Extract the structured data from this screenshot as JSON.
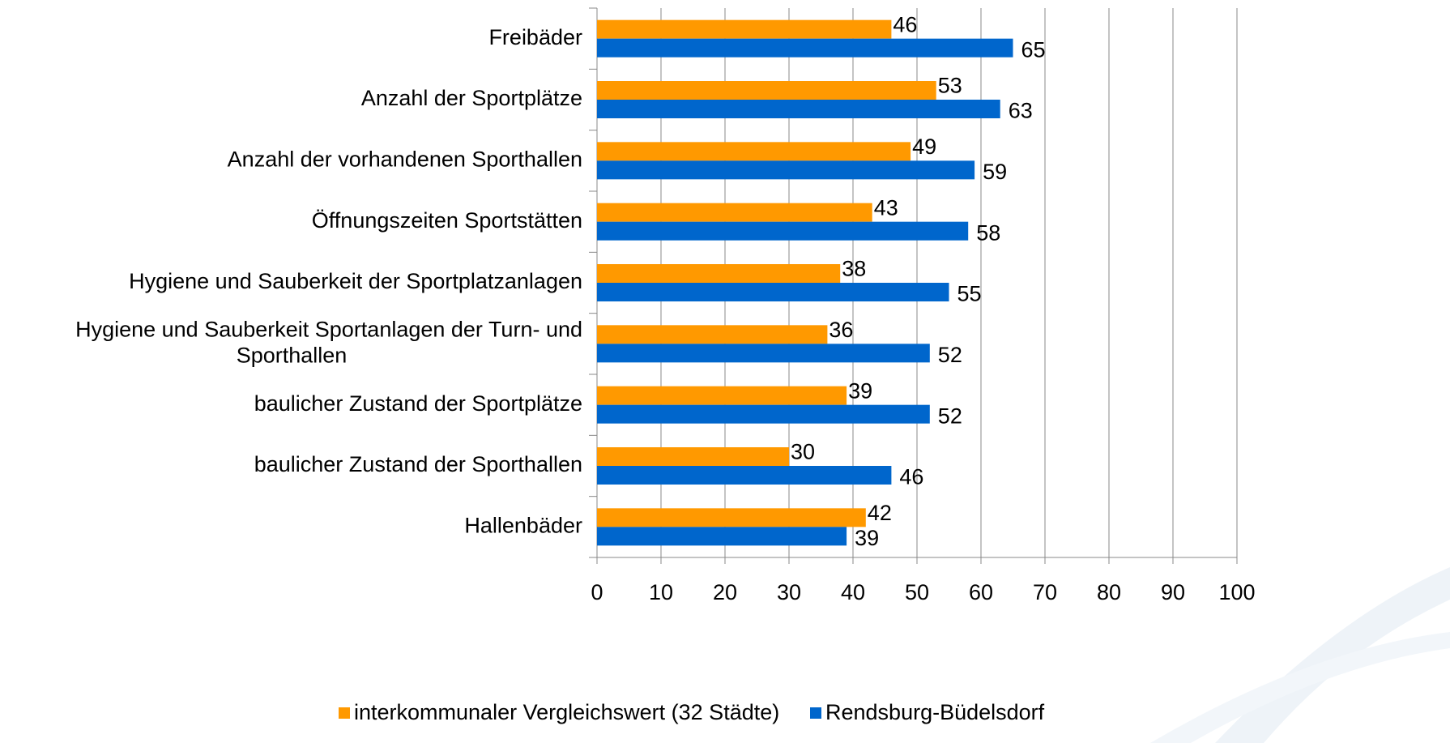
{
  "chart_data": {
    "type": "barh",
    "categories": [
      "Freibäder",
      "Anzahl der  Sportplätze",
      "Anzahl der vorhandenen Sporthallen",
      "Öffnungszeiten Sportstätten",
      "Hygiene und Sauberkeit der Sportplatzanlagen",
      "Hygiene und Sauberkeit Sportanlagen der Turn- und Sporthallen",
      "baulicher Zustand der Sportplätze",
      "baulicher Zustand der Sporthallen",
      "Hallenbäder"
    ],
    "series": [
      {
        "name": "interkommunaler Vergleichswert (32 Städte)",
        "color": "#ff9900",
        "values": [
          46,
          53,
          49,
          43,
          38,
          36,
          39,
          30,
          42
        ]
      },
      {
        "name": "Rendsburg-Büdelsdorf",
        "color": "#0066cc",
        "values": [
          65,
          63,
          59,
          58,
          55,
          52,
          52,
          46,
          39
        ]
      }
    ],
    "xlim": [
      0,
      100
    ],
    "xticks": [
      0,
      10,
      20,
      30,
      40,
      50,
      60,
      70,
      80,
      90,
      100
    ],
    "grid": true,
    "legend": "bottom"
  }
}
